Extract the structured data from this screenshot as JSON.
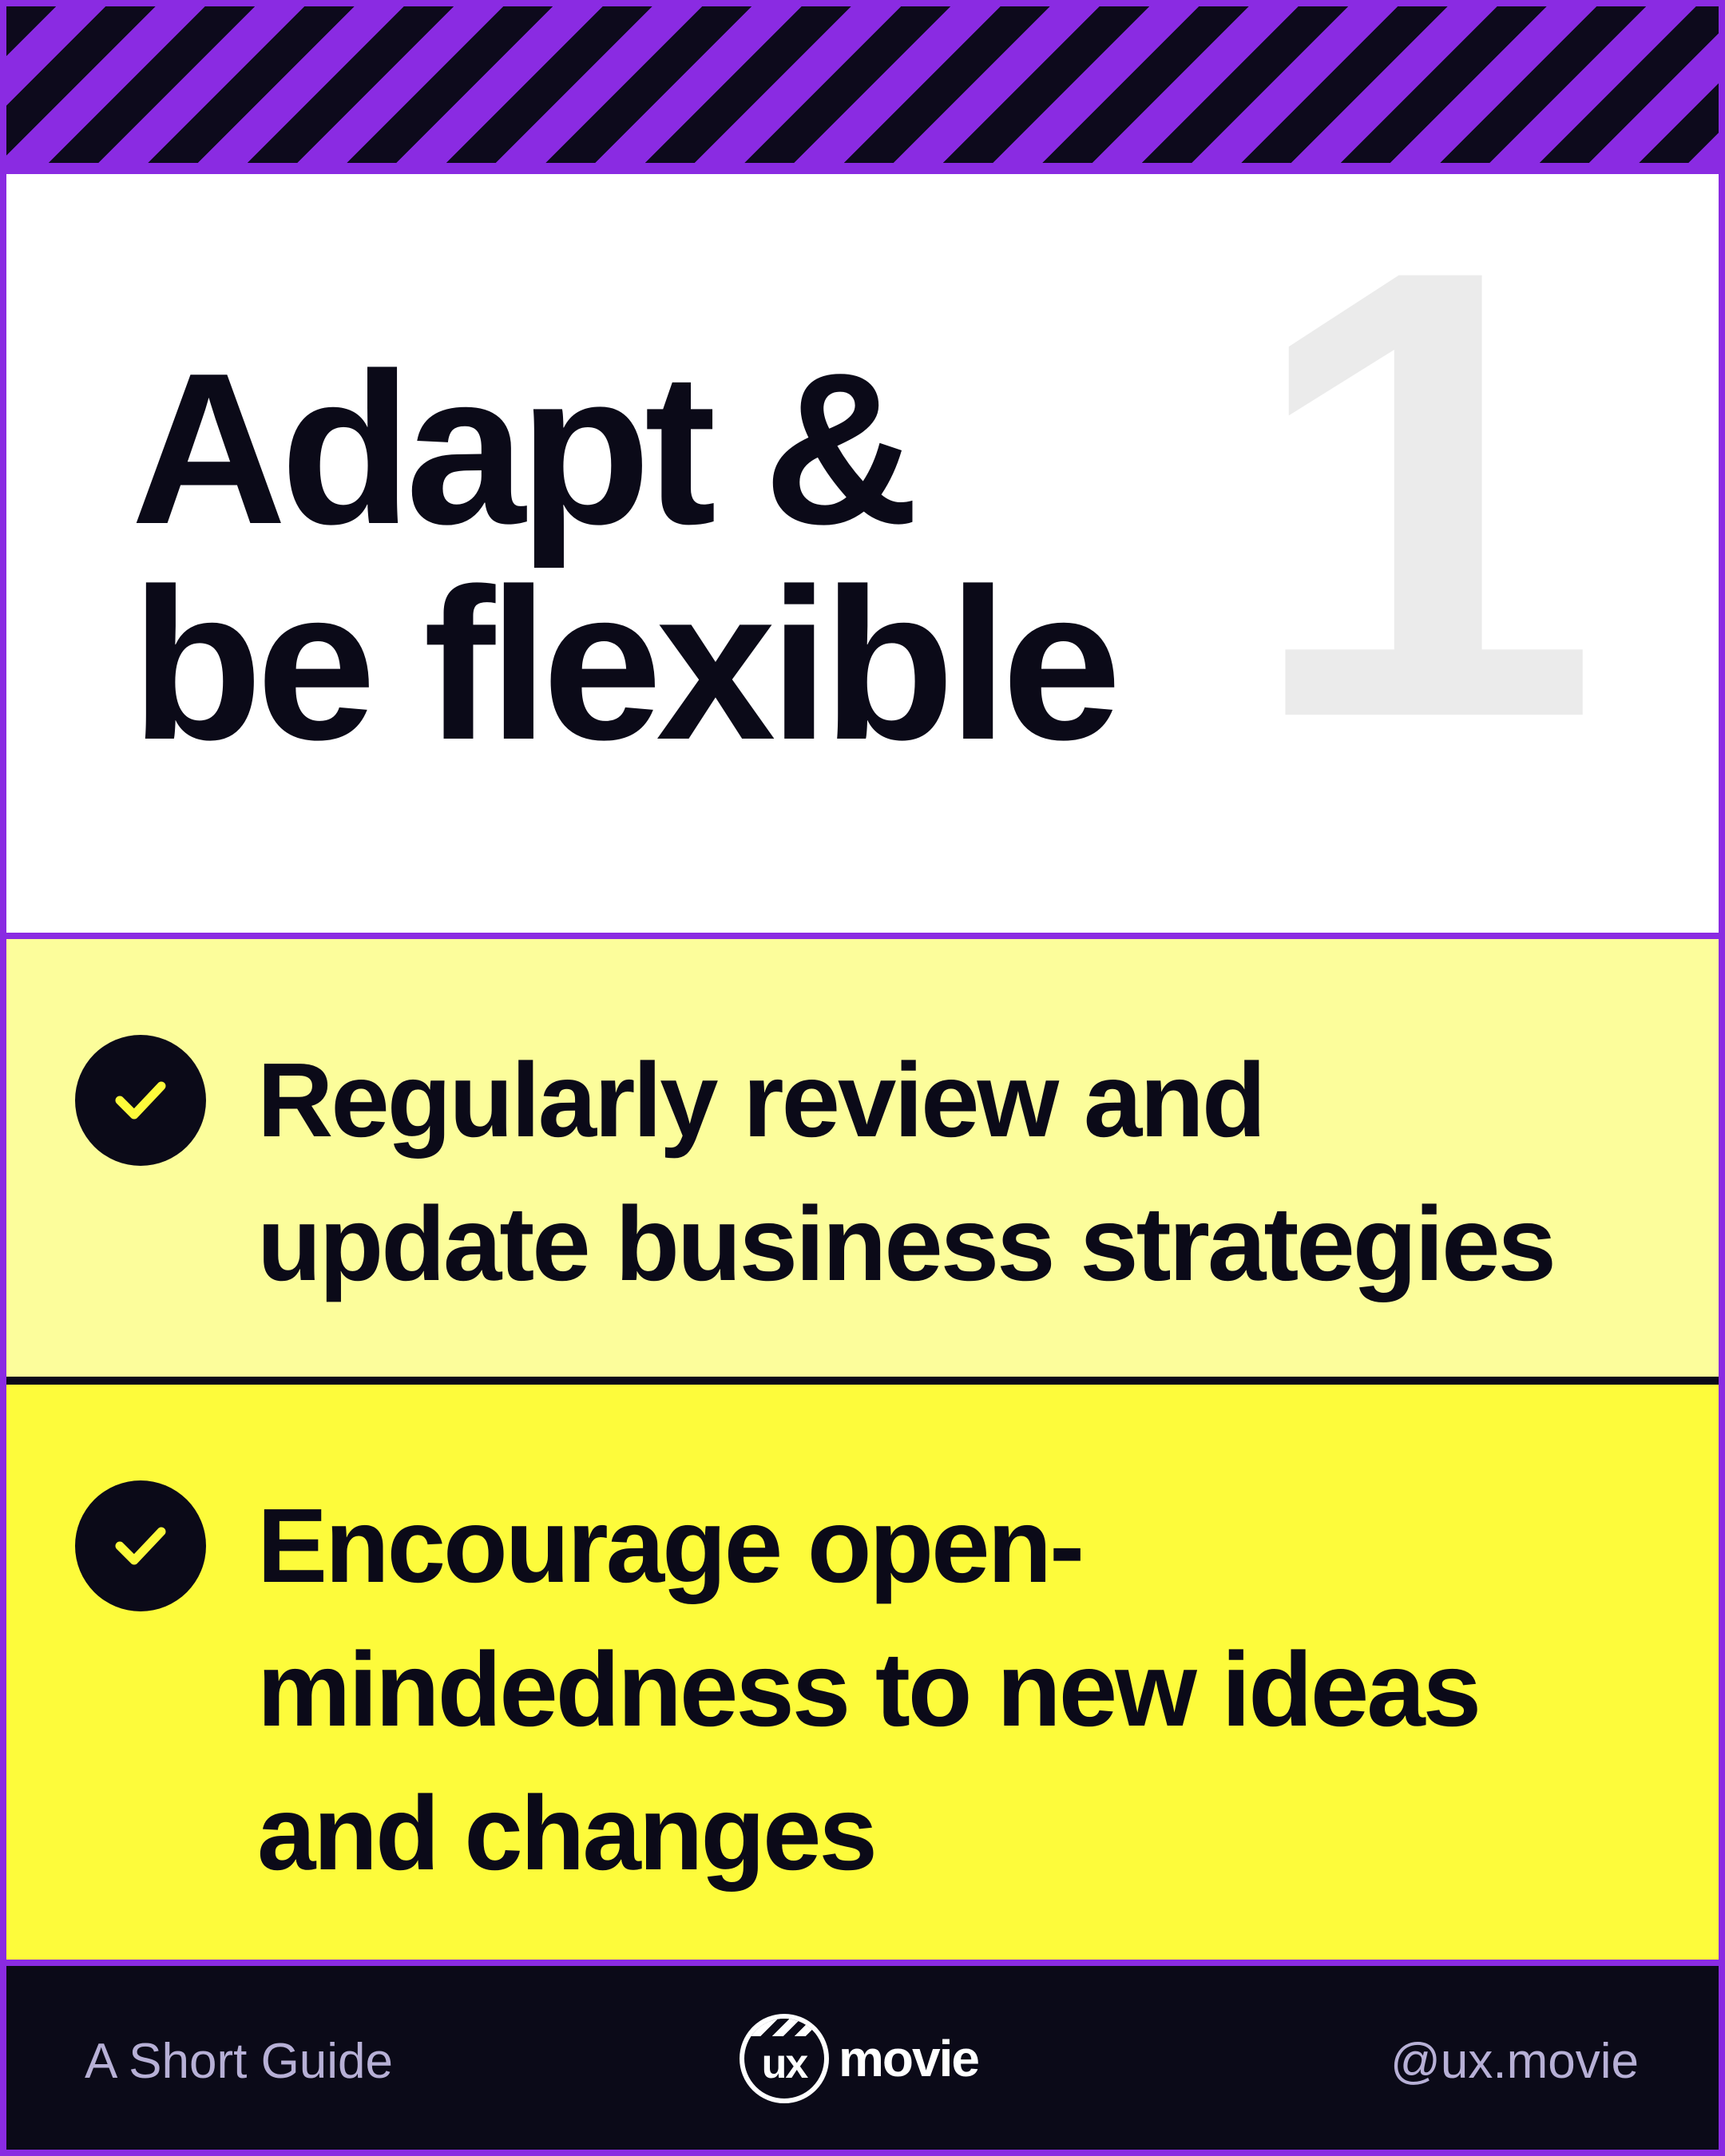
{
  "header": {
    "number": "1",
    "title_line_1": "Adapt &",
    "title_line_2": "be flexible"
  },
  "items": [
    {
      "icon": "check-icon",
      "lines": [
        "Regularly review and",
        "update business strategies"
      ]
    },
    {
      "icon": "check-icon",
      "lines": [
        "Encourage open-",
        "mindedness to new ideas",
        "and changes"
      ]
    }
  ],
  "footer": {
    "left_text": "A Short Guide",
    "logo_mark": "ux",
    "logo_word": "movie",
    "handle": "@ux.movie"
  },
  "colors": {
    "frame": "#8a2be2",
    "ink": "#0b0a18",
    "row_light": "#fcfd9b",
    "row_bright": "#fdfb3b",
    "number": "#ebebeb"
  }
}
